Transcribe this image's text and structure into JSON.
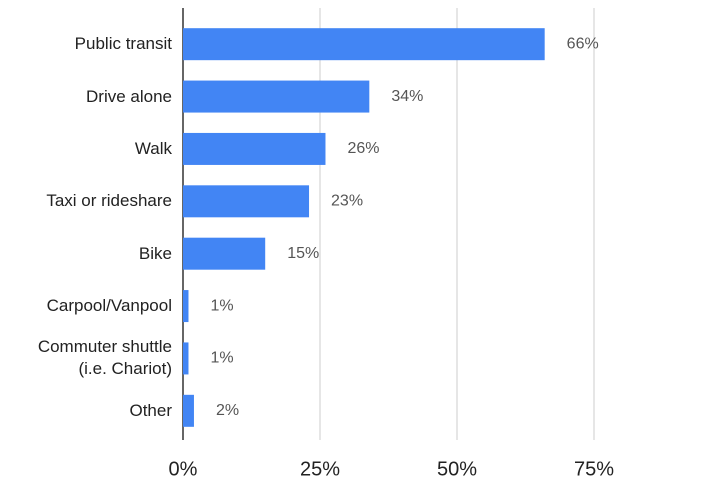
{
  "chart_data": {
    "type": "bar",
    "orientation": "horizontal",
    "categories": [
      "Public transit",
      "Drive alone",
      "Walk",
      "Taxi or rideshare",
      "Bike",
      "Carpool/Vanpool",
      "Commuter shuttle\n(i.e. Chariot)",
      "Other"
    ],
    "values": [
      66,
      34,
      26,
      23,
      15,
      1,
      1,
      2
    ],
    "value_labels": [
      "66%",
      "34%",
      "26%",
      "23%",
      "15%",
      "1%",
      "1%",
      "2%"
    ],
    "color": "#4285f4",
    "xlim": [
      0,
      75
    ],
    "xticks": [
      {
        "value": 0,
        "label": "0%"
      },
      {
        "value": 25,
        "label": "25%"
      },
      {
        "value": 50,
        "label": "50%"
      },
      {
        "value": 75,
        "label": "75%"
      }
    ],
    "grid": true
  }
}
